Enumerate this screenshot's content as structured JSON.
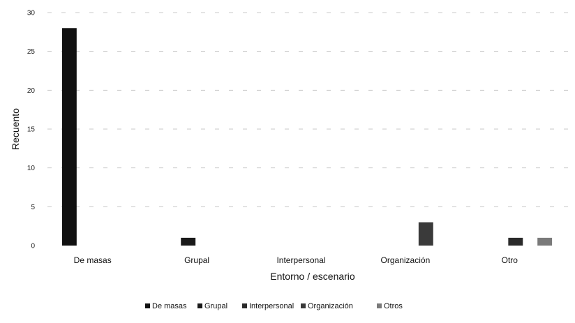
{
  "chart_data": {
    "type": "bar",
    "title": "",
    "xlabel": "Entorno / escenario",
    "ylabel": "Recuento",
    "ylim": [
      0,
      30
    ],
    "yticks": [
      0,
      5,
      10,
      15,
      20,
      25,
      30
    ],
    "grid": true,
    "legend_position": "bottom",
    "categories": [
      "De masas",
      "Grupal",
      "Interpersonal",
      "Organización",
      "Otro"
    ],
    "series": [
      {
        "name": "De masas",
        "color": "#111111",
        "values": [
          28,
          0,
          0,
          0,
          0
        ]
      },
      {
        "name": "Grupal",
        "color": "#1a1a1a",
        "values": [
          0,
          1,
          0,
          0,
          0
        ]
      },
      {
        "name": "Interpersonal",
        "color": "#2a2a2a",
        "values": [
          0,
          0,
          0,
          0,
          1
        ]
      },
      {
        "name": "Organización",
        "color": "#3a3a3a",
        "values": [
          0,
          0,
          0,
          3,
          0
        ]
      },
      {
        "name": "Otros",
        "color": "#7a7a7a",
        "values": [
          0,
          0,
          0,
          0,
          1
        ]
      }
    ]
  }
}
